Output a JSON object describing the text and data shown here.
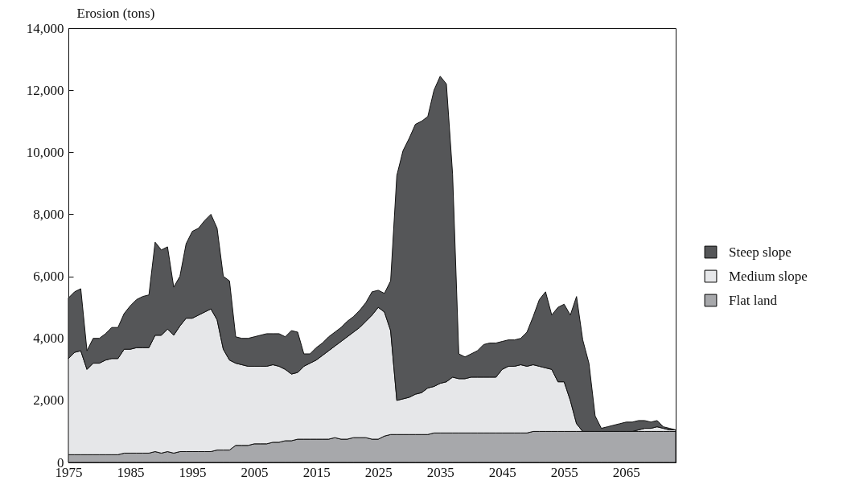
{
  "chart_data": {
    "type": "area",
    "stacked": true,
    "ylabel": "Erosion (tons)",
    "x": [
      1975,
      1976,
      1977,
      1978,
      1979,
      1980,
      1981,
      1982,
      1983,
      1984,
      1985,
      1986,
      1987,
      1988,
      1989,
      1990,
      1991,
      1992,
      1993,
      1994,
      1995,
      1996,
      1997,
      1998,
      1999,
      2000,
      2001,
      2002,
      2003,
      2004,
      2005,
      2006,
      2007,
      2008,
      2009,
      2010,
      2011,
      2012,
      2013,
      2014,
      2015,
      2016,
      2017,
      2018,
      2019,
      2020,
      2021,
      2022,
      2023,
      2024,
      2025,
      2026,
      2027,
      2028,
      2029,
      2030,
      2031,
      2032,
      2033,
      2034,
      2035,
      2036,
      2037,
      2038,
      2039,
      2040,
      2041,
      2042,
      2043,
      2044,
      2045,
      2046,
      2047,
      2048,
      2049,
      2050,
      2051,
      2052,
      2053,
      2054,
      2055,
      2056,
      2057,
      2058,
      2059,
      2060,
      2061,
      2062,
      2063,
      2064,
      2065,
      2066,
      2067,
      2068,
      2069,
      2070,
      2071,
      2072,
      2073
    ],
    "series": [
      {
        "name": "Flat land",
        "color": "#a7a8ab",
        "values": [
          250,
          250,
          250,
          250,
          250,
          250,
          250,
          250,
          250,
          300,
          300,
          300,
          300,
          300,
          350,
          300,
          350,
          300,
          350,
          350,
          350,
          350,
          350,
          350,
          400,
          400,
          400,
          550,
          550,
          550,
          600,
          600,
          600,
          650,
          650,
          700,
          700,
          750,
          750,
          750,
          750,
          750,
          750,
          800,
          750,
          750,
          800,
          800,
          800,
          750,
          750,
          850,
          900,
          900,
          900,
          900,
          900,
          900,
          900,
          950,
          950,
          950,
          950,
          950,
          950,
          950,
          950,
          950,
          950,
          950,
          950,
          950,
          950,
          950,
          950,
          1000,
          1000,
          1000,
          1000,
          1000,
          1000,
          1000,
          1000,
          1000,
          1000,
          1000,
          1000,
          1000,
          1000,
          1000,
          1000,
          1000,
          1000,
          1000,
          1000,
          1000,
          1000,
          1000,
          1000
        ]
      },
      {
        "name": "Medium slope",
        "color": "#e6e7e9",
        "values": [
          3100,
          3300,
          3350,
          2750,
          2950,
          2950,
          3050,
          3100,
          3100,
          3350,
          3350,
          3400,
          3400,
          3400,
          3750,
          3800,
          3950,
          3800,
          4050,
          4300,
          4300,
          4400,
          4500,
          4600,
          4200,
          3250,
          2900,
          2650,
          2600,
          2550,
          2500,
          2500,
          2500,
          2500,
          2450,
          2300,
          2150,
          2150,
          2350,
          2450,
          2550,
          2700,
          2850,
          2950,
          3150,
          3300,
          3400,
          3550,
          3750,
          4000,
          4250,
          4000,
          3350,
          1100,
          1150,
          1200,
          1300,
          1350,
          1500,
          1500,
          1600,
          1650,
          1800,
          1750,
          1750,
          1800,
          1800,
          1800,
          1800,
          1800,
          2050,
          2150,
          2150,
          2200,
          2150,
          2150,
          2100,
          2050,
          2000,
          1600,
          1600,
          1000,
          250,
          0,
          0,
          0,
          0,
          0,
          0,
          0,
          0,
          0,
          50,
          100,
          100,
          150,
          100,
          50,
          50
        ]
      },
      {
        "name": "Steep slope",
        "color": "#555658",
        "values": [
          1950,
          1950,
          2000,
          600,
          800,
          800,
          850,
          1000,
          1000,
          1150,
          1400,
          1550,
          1650,
          1700,
          3000,
          2750,
          2650,
          1550,
          1600,
          2400,
          2800,
          2800,
          2950,
          3050,
          2950,
          2350,
          2550,
          850,
          850,
          900,
          950,
          1000,
          1050,
          1000,
          1050,
          1050,
          1400,
          1300,
          400,
          300,
          400,
          400,
          450,
          450,
          450,
          500,
          500,
          550,
          600,
          750,
          550,
          600,
          1600,
          7250,
          8000,
          8350,
          8700,
          8750,
          8750,
          9550,
          9900,
          9600,
          6550,
          800,
          700,
          750,
          850,
          1050,
          1100,
          1100,
          900,
          850,
          850,
          850,
          1100,
          1550,
          2150,
          2450,
          1750,
          2400,
          2500,
          2750,
          4100,
          2950,
          2200,
          500,
          100,
          150,
          200,
          250,
          300,
          300,
          300,
          250,
          200,
          200,
          50,
          50,
          0
        ]
      }
    ],
    "xlim": [
      1975,
      2073
    ],
    "xticks": [
      1975,
      1985,
      1995,
      2005,
      2015,
      2025,
      2035,
      2045,
      2055,
      2065
    ],
    "ylim": [
      0,
      14000
    ],
    "yticks": [
      0,
      {
        "value": 2000,
        "label": "2,000"
      },
      {
        "value": 4000,
        "label": "4,000"
      },
      {
        "value": 6000,
        "label": "6,000"
      },
      {
        "value": 8000,
        "label": "8,000"
      },
      {
        "value": 10000,
        "label": "10,000"
      },
      {
        "value": 12000,
        "label": "12,000"
      },
      {
        "value": 14000,
        "label": "14,000"
      }
    ],
    "legend": "right",
    "grid": false
  }
}
